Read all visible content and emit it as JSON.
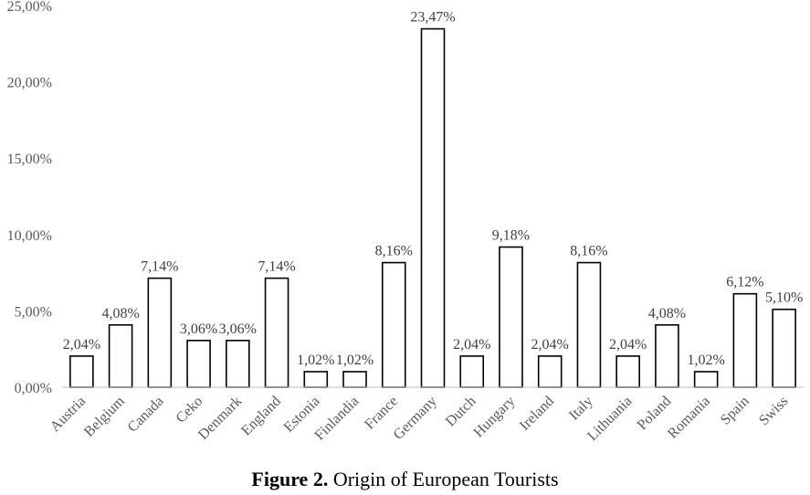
{
  "chart_data": {
    "type": "bar",
    "title": "",
    "xlabel": "",
    "ylabel": "",
    "categories": [
      "Austria",
      "Belgium",
      "Canada",
      "Ceko",
      "Denmark",
      "England",
      "Estonia",
      "Finlandia",
      "France",
      "Germany",
      "Dutch",
      "Hungary",
      "Ireland",
      "Italy",
      "Lithuania",
      "Poland",
      "Romania",
      "Spain",
      "Swiss"
    ],
    "values": [
      2.04,
      4.08,
      7.14,
      3.06,
      3.06,
      7.14,
      1.02,
      1.02,
      8.16,
      23.47,
      2.04,
      9.18,
      2.04,
      8.16,
      2.04,
      4.08,
      1.02,
      6.12,
      5.1
    ],
    "data_labels": [
      "2,04%",
      "4,08%",
      "7,14%",
      "3,06%",
      "3,06%",
      "7,14%",
      "1,02%",
      "1,02%",
      "8,16%",
      "23,47%",
      "2,04%",
      "9,18%",
      "2,04%",
      "8,16%",
      "2,04%",
      "4,08%",
      "1,02%",
      "6,12%",
      "5,10%"
    ],
    "yticks": [
      0,
      5,
      10,
      15,
      20,
      25
    ],
    "ytick_labels": [
      "0,00%",
      "5,00%",
      "10,00%",
      "15,00%",
      "20,00%",
      "25,00%"
    ],
    "ylim": [
      0,
      25
    ],
    "grid": false,
    "legend": "none",
    "bar_fill": "#ffffff",
    "bar_stroke": "#000000"
  },
  "caption": {
    "label": "Figure 2.",
    "text": " Origin of European Tourists"
  }
}
